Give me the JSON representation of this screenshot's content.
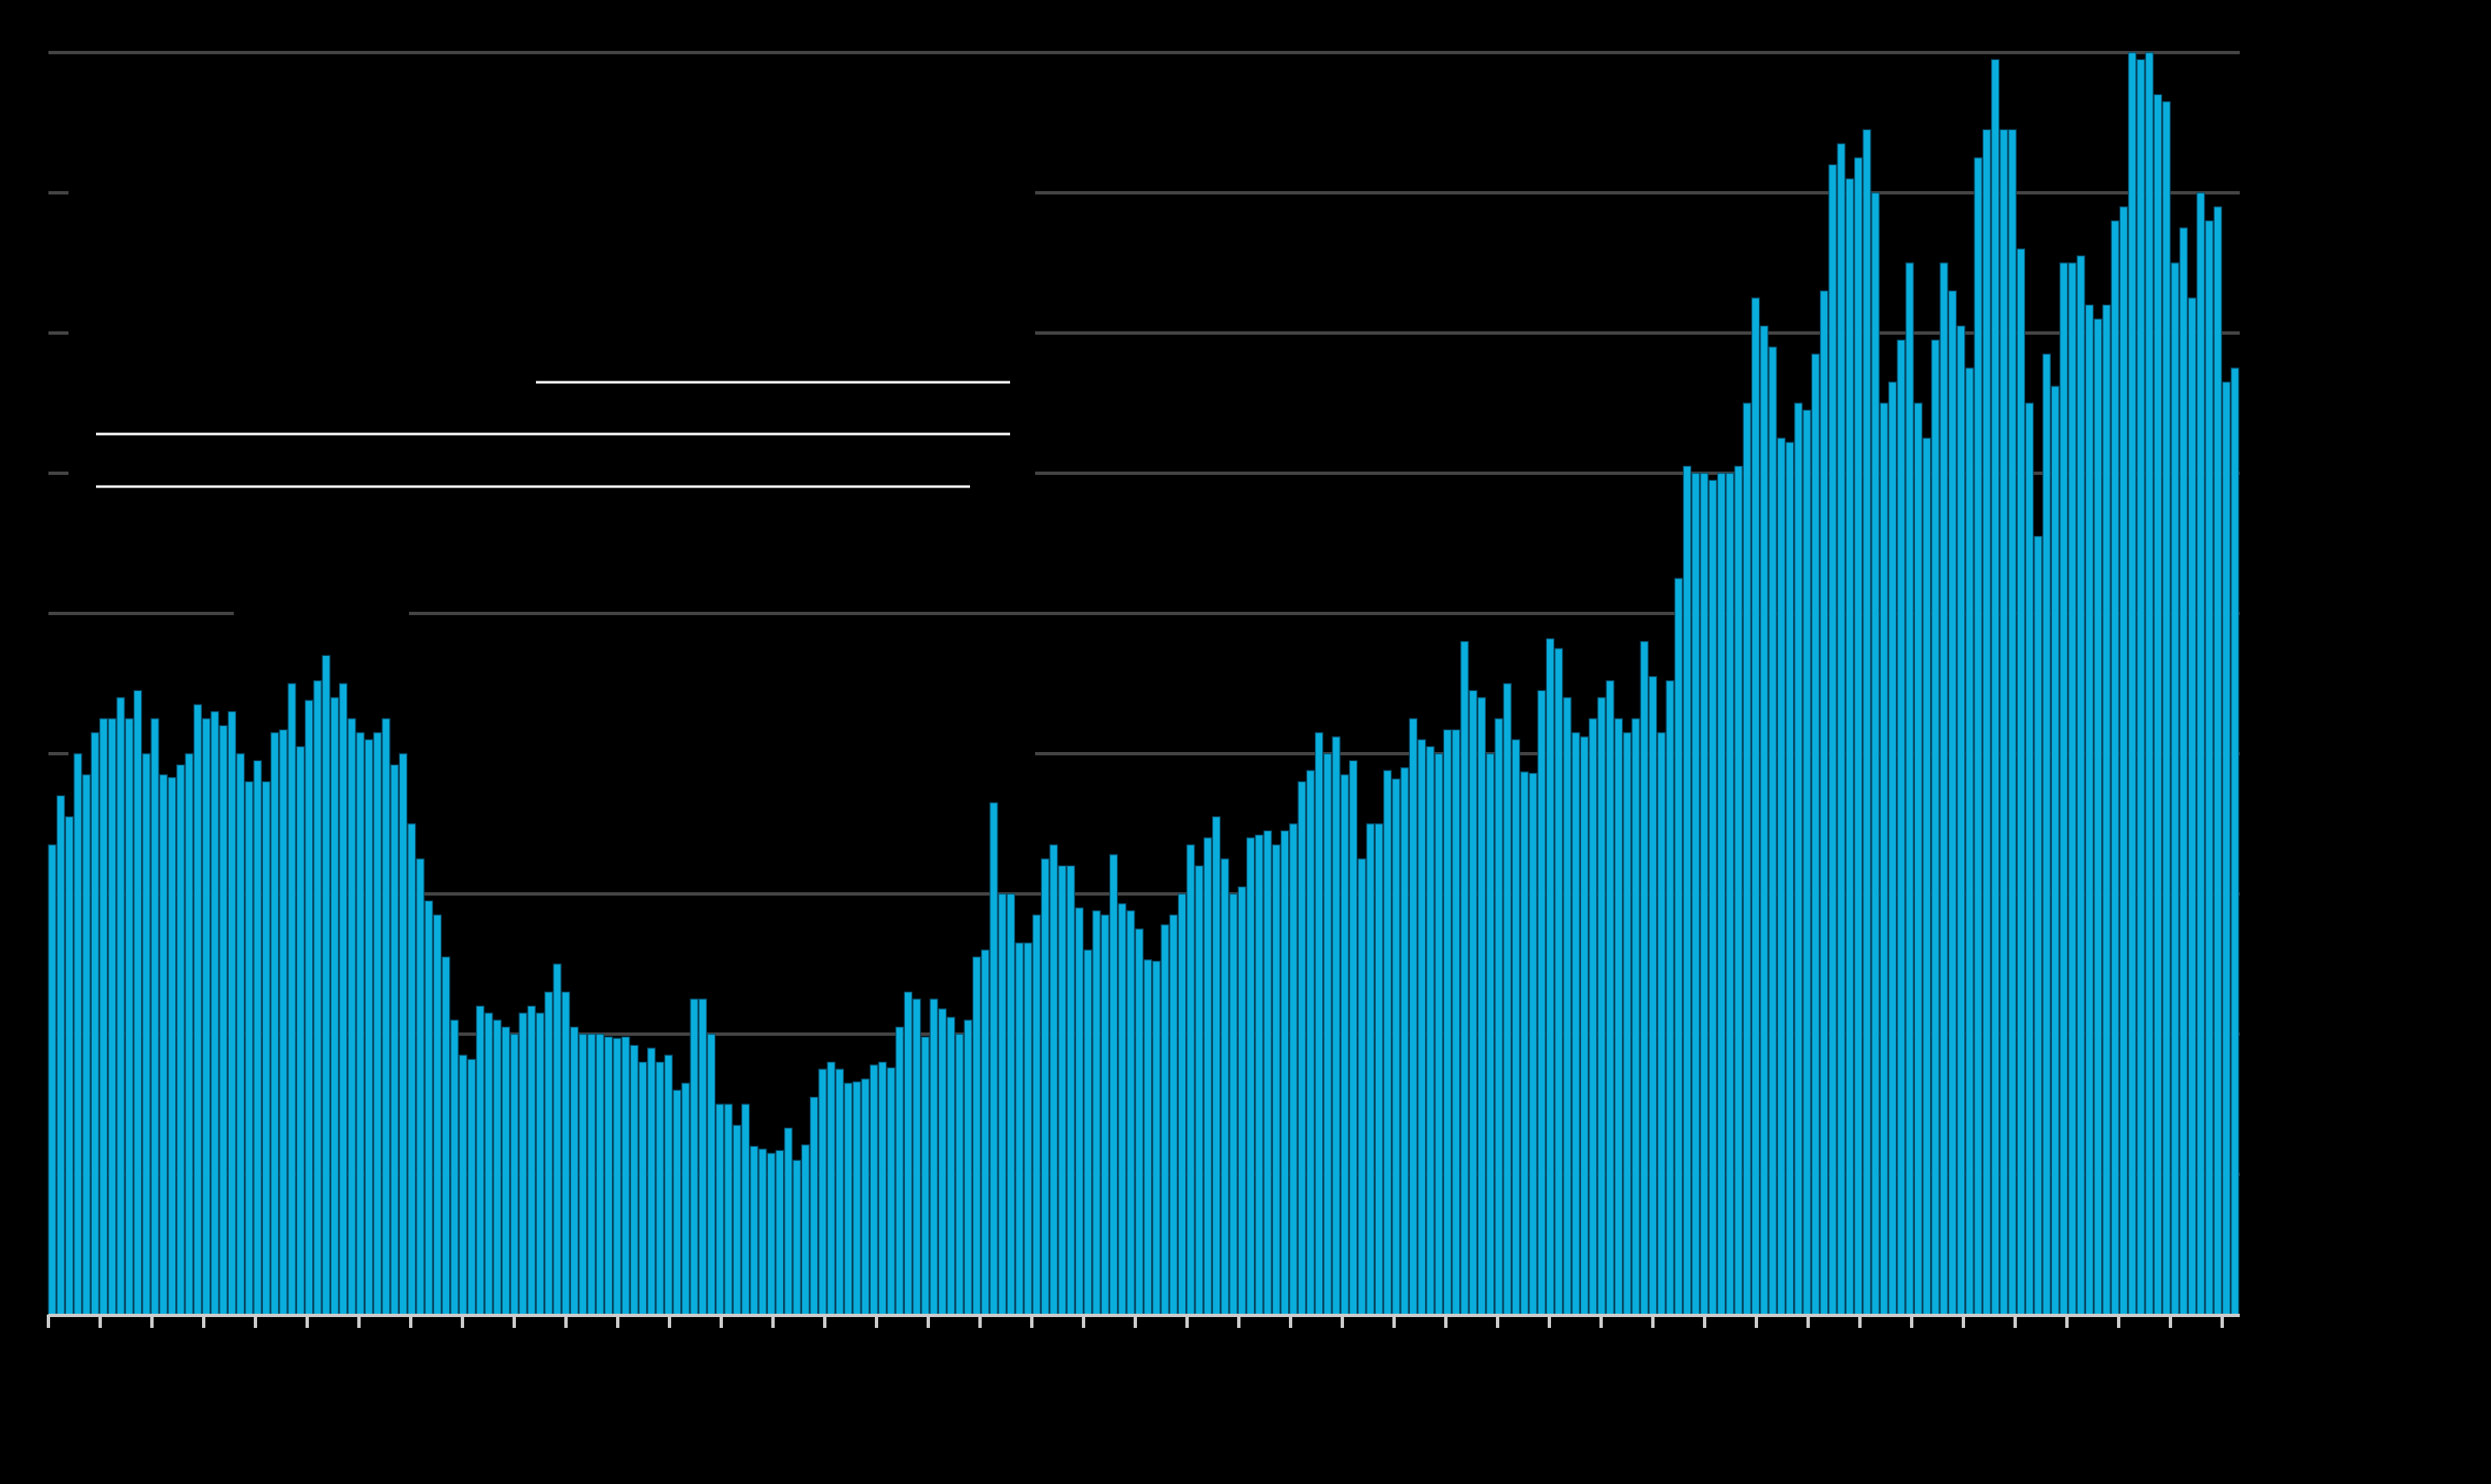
{
  "chart_data": {
    "type": "bar",
    "title": "",
    "xlabel": "",
    "ylabel": "",
    "grid": true,
    "ylim": [
      0,
      9
    ],
    "colors": {
      "background": "#000000",
      "bar": "#0aaedd",
      "bar_edge": "#084a66",
      "highlight_band": "#00a8e8",
      "gridline": "#444444",
      "legend_rule": "#ffffff",
      "axis": "#cccccc"
    },
    "highlight_band": {
      "from_index": 283,
      "to_index": 408,
      "height": 0.55
    },
    "values": [
      3.35,
      3.7,
      3.55,
      4.0,
      3.85,
      4.15,
      4.25,
      4.25,
      4.4,
      4.25,
      4.45,
      4.0,
      4.25,
      3.85,
      3.83,
      3.92,
      4.0,
      4.35,
      4.25,
      4.3,
      4.2,
      4.3,
      4.0,
      3.8,
      3.95,
      3.8,
      4.15,
      4.17,
      4.5,
      4.05,
      4.38,
      4.52,
      4.7,
      4.4,
      4.5,
      4.25,
      4.15,
      4.1,
      4.15,
      4.25,
      3.92,
      4.0,
      3.5,
      3.25,
      2.95,
      2.85,
      2.55,
      2.1,
      1.85,
      1.82,
      2.2,
      2.15,
      2.1,
      2.05,
      2.0,
      2.15,
      2.2,
      2.15,
      2.3,
      2.5,
      2.3,
      2.05,
      2.0,
      2.0,
      2.0,
      1.98,
      1.97,
      1.98,
      1.92,
      1.8,
      1.9,
      1.8,
      1.85,
      1.6,
      1.65,
      2.25,
      2.25,
      2.0,
      1.5,
      1.5,
      1.35,
      1.5,
      1.2,
      1.18,
      1.15,
      1.17,
      1.33,
      1.1,
      1.21,
      1.55,
      1.75,
      1.8,
      1.75,
      1.65,
      1.66,
      1.68,
      1.78,
      1.8,
      1.76,
      2.05,
      2.3,
      2.25,
      1.98,
      2.25,
      2.18,
      2.12,
      2.0,
      2.1,
      2.55,
      2.6,
      3.65,
      3.0,
      3.0,
      2.65,
      2.65,
      2.85,
      3.25,
      3.35,
      3.2,
      3.2,
      2.9,
      2.6,
      2.88,
      2.85,
      3.28,
      2.93,
      2.88,
      2.75,
      2.53,
      2.52,
      2.78,
      2.85,
      3.0,
      3.35,
      3.2,
      3.4,
      3.55,
      3.25,
      3.0,
      3.05,
      3.4,
      3.42,
      3.45,
      3.35,
      3.45,
      3.5,
      3.8,
      3.88,
      4.15,
      4.0,
      4.12,
      3.85,
      3.95,
      3.25,
      3.5,
      3.5,
      3.88,
      3.82,
      3.9,
      4.25,
      4.1,
      4.05,
      4.0,
      4.17,
      4.17,
      4.8,
      4.45,
      4.4,
      4.0,
      4.25,
      4.5,
      4.1,
      3.87,
      3.86,
      4.45,
      4.82,
      4.75,
      4.4,
      4.15,
      4.12,
      4.25,
      4.4,
      4.52,
      4.25,
      4.15,
      4.25,
      4.8,
      4.55,
      4.15,
      4.52,
      5.25,
      6.05,
      6.0,
      6.0,
      5.95,
      6.0,
      6.0,
      6.05,
      6.5,
      7.25,
      7.05,
      6.9,
      6.25,
      6.22,
      6.5,
      6.45,
      6.85,
      7.3,
      8.2,
      8.35,
      8.1,
      8.25,
      8.45,
      8.0,
      6.5,
      6.65,
      6.95,
      7.5,
      6.5,
      6.25,
      6.95,
      7.5,
      7.3,
      7.05,
      6.75,
      8.25,
      8.45,
      8.95,
      8.45,
      8.45,
      7.6,
      6.5,
      5.55,
      6.85,
      6.62,
      7.5,
      7.5,
      7.55,
      7.2,
      7.1,
      7.2,
      7.8,
      7.9,
      9.0,
      8.95,
      9.0,
      8.7,
      8.65,
      7.5,
      7.75,
      7.25,
      8.0,
      7.8,
      7.9,
      6.65,
      6.75
    ]
  }
}
